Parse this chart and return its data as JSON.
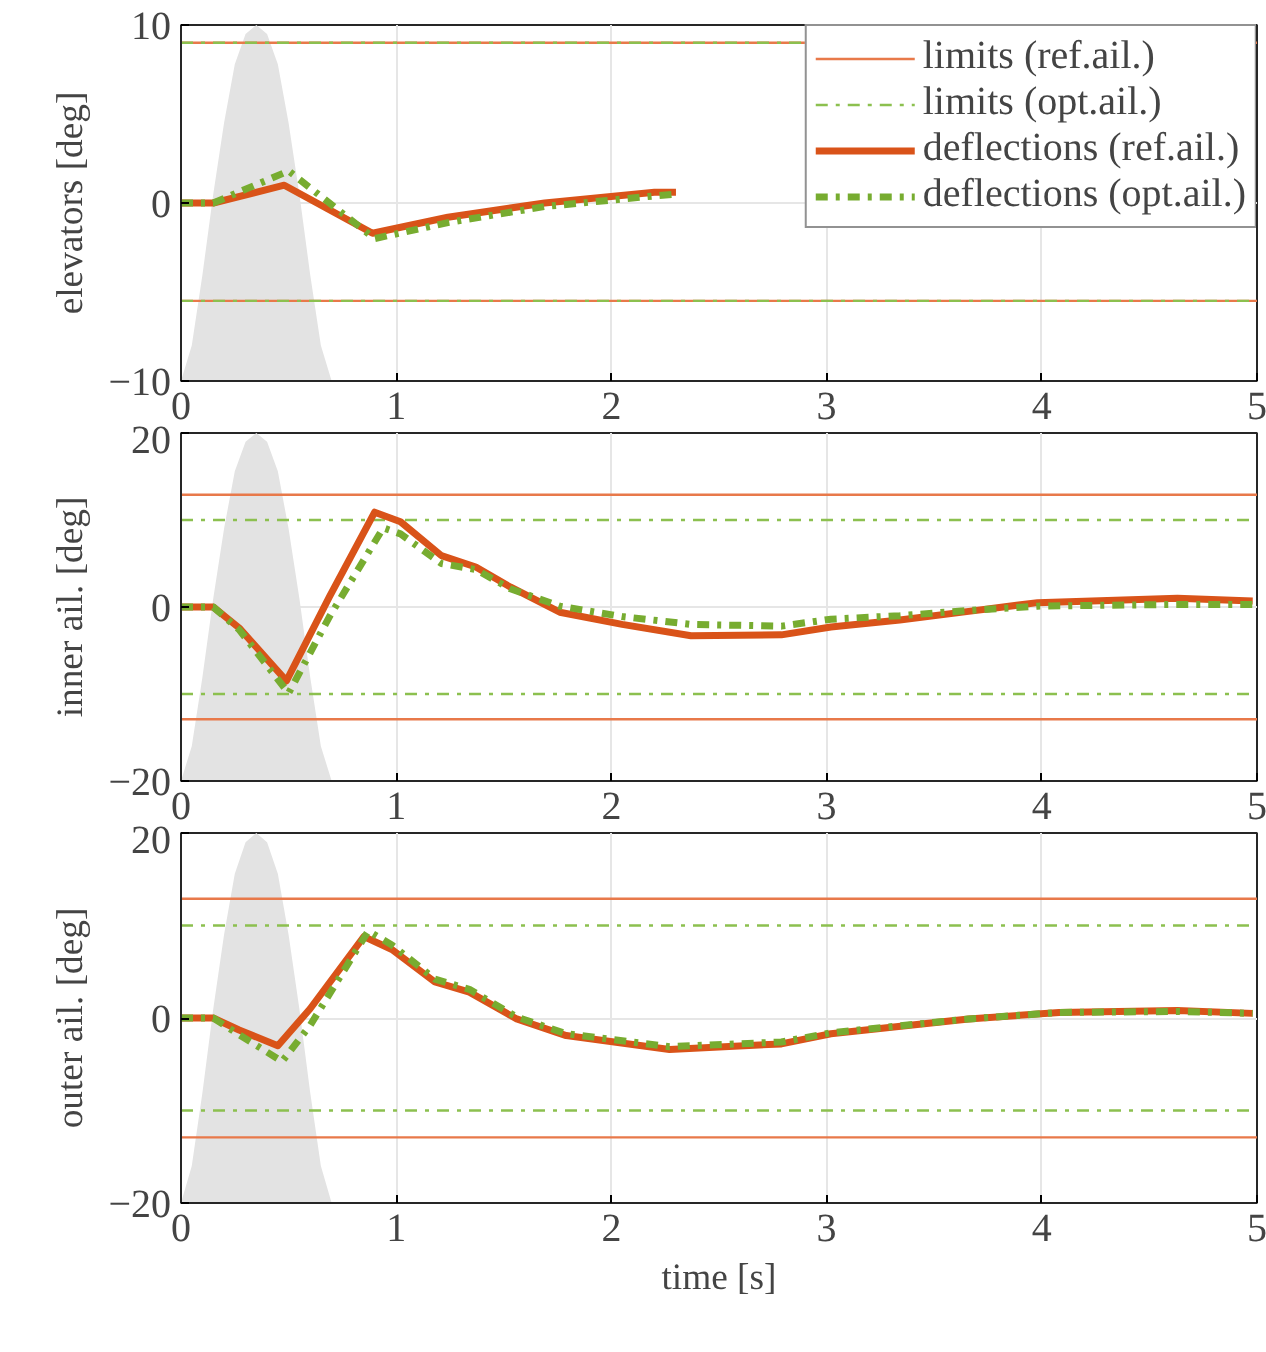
{
  "chart_data": [
    {
      "type": "line",
      "ylabel": "elevators [deg]",
      "xlim": [
        0,
        5
      ],
      "ylim": [
        -10,
        10
      ],
      "xticks": [
        0,
        1,
        2,
        3,
        4,
        5
      ],
      "yticks": [
        -10,
        0,
        10
      ],
      "grid": true,
      "legend": "top right",
      "ref_lines": [
        {
          "axis": "y",
          "value": 9,
          "label": "limits (ref.ail.)",
          "color": "#e8794a",
          "line_style": "solid"
        },
        {
          "axis": "y",
          "value": -5.5,
          "color": "#e8794a",
          "line_style": "solid"
        },
        {
          "axis": "y",
          "value": 9,
          "label": "limits (opt.ail.)",
          "color": "#8cc04f",
          "line_style": "dashdot"
        },
        {
          "axis": "y",
          "value": -5.5,
          "color": "#8cc04f",
          "line_style": "dashdot"
        }
      ],
      "series": [
        {
          "type": "area",
          "color": "#e3e3e3",
          "x": [
            0,
            0.05,
            0.1,
            0.15,
            0.2,
            0.25,
            0.3,
            0.35,
            0.4,
            0.45,
            0.5,
            0.55,
            0.6,
            0.65,
            0.7
          ],
          "values": [
            -10,
            -8,
            -4,
            0.5,
            4.5,
            7.8,
            9.5,
            10,
            9.5,
            7.8,
            4.5,
            0.5,
            -4,
            -8,
            -10
          ]
        },
        {
          "name": "deflections (ref.ail.)",
          "color": "#d95319",
          "line_style": "solid",
          "x": [
            0,
            0.15,
            0.48,
            0.89,
            1.24,
            1.69,
            2.2,
            2.3
          ],
          "values": [
            0,
            0,
            1,
            -1.7,
            -0.8,
            0,
            0.6,
            0.6
          ]
        },
        {
          "name": "deflections (opt.ail.)",
          "color": "#77ac30",
          "line_style": "dashdot",
          "x": [
            0,
            0.15,
            0.5,
            0.9,
            1.24,
            1.69,
            2.2,
            2.3
          ],
          "values": [
            0,
            0,
            1.8,
            -2,
            -1.1,
            -0.2,
            0.4,
            0.5
          ]
        }
      ]
    },
    {
      "type": "line",
      "ylabel": "inner ail. [deg]",
      "xlim": [
        0,
        5
      ],
      "ylim": [
        -20,
        20
      ],
      "xticks": [
        0,
        1,
        2,
        3,
        4,
        5
      ],
      "yticks": [
        -20,
        0,
        20
      ],
      "grid": true,
      "ref_lines": [
        {
          "axis": "y",
          "value": 12.9,
          "color": "#e8794a",
          "line_style": "solid"
        },
        {
          "axis": "y",
          "value": -12.9,
          "color": "#e8794a",
          "line_style": "solid"
        },
        {
          "axis": "y",
          "value": 10,
          "color": "#8cc04f",
          "line_style": "dashdot"
        },
        {
          "axis": "y",
          "value": -10,
          "color": "#8cc04f",
          "line_style": "dashdot"
        }
      ],
      "series": [
        {
          "type": "area",
          "color": "#e3e3e3",
          "x": [
            0,
            0.05,
            0.1,
            0.15,
            0.2,
            0.25,
            0.3,
            0.35,
            0.4,
            0.45,
            0.5,
            0.55,
            0.6,
            0.65,
            0.7
          ],
          "values": [
            -20,
            -16,
            -8,
            1,
            9,
            15.6,
            19,
            20,
            19,
            15.6,
            9,
            1,
            -8,
            -16,
            -20
          ]
        },
        {
          "color": "#d95319",
          "line_style": "solid",
          "x": [
            0,
            0.15,
            0.27,
            0.49,
            0.69,
            0.9,
            1.02,
            1.21,
            1.37,
            1.53,
            1.76,
            2.05,
            2.37,
            2.79,
            3.02,
            3.34,
            3.66,
            3.98,
            4.63,
            4.98
          ],
          "values": [
            0,
            0,
            -2.4,
            -8.5,
            1.2,
            10.9,
            9.8,
            5.9,
            4.6,
            2.3,
            -0.6,
            -2,
            -3.3,
            -3.2,
            -2.3,
            -1.5,
            -0.5,
            0.5,
            1.0,
            0.7
          ]
        },
        {
          "color": "#77ac30",
          "line_style": "dashdot",
          "x": [
            0,
            0.15,
            0.27,
            0.5,
            0.69,
            0.94,
            1.02,
            1.21,
            1.37,
            1.53,
            1.76,
            2.05,
            2.37,
            2.79,
            3.02,
            3.34,
            3.66,
            3.98,
            4.63,
            4.98
          ],
          "values": [
            0,
            0,
            -2.6,
            -9.9,
            -1.1,
            9.1,
            8.4,
            5.0,
            4.3,
            2.1,
            0.1,
            -1.1,
            -2.0,
            -2.2,
            -1.4,
            -1.0,
            -0.4,
            0.1,
            0.3,
            0.3
          ]
        }
      ]
    },
    {
      "type": "line",
      "ylabel": "outer ail. [deg]",
      "xlabel": "time [s]",
      "xlim": [
        0,
        5
      ],
      "ylim": [
        -20,
        20
      ],
      "xticks": [
        0,
        1,
        2,
        3,
        4,
        5
      ],
      "yticks": [
        -20,
        0,
        20
      ],
      "grid": true,
      "ref_lines": [
        {
          "axis": "y",
          "value": 12.9,
          "color": "#e8794a",
          "line_style": "solid"
        },
        {
          "axis": "y",
          "value": -12.9,
          "color": "#e8794a",
          "line_style": "solid"
        },
        {
          "axis": "y",
          "value": 10,
          "color": "#8cc04f",
          "line_style": "dashdot"
        },
        {
          "axis": "y",
          "value": -10,
          "color": "#8cc04f",
          "line_style": "dashdot"
        }
      ],
      "series": [
        {
          "type": "area",
          "color": "#e3e3e3",
          "x": [
            0,
            0.05,
            0.1,
            0.15,
            0.2,
            0.25,
            0.3,
            0.35,
            0.4,
            0.45,
            0.5,
            0.55,
            0.6,
            0.65,
            0.7
          ],
          "values": [
            -20,
            -16,
            -8,
            1,
            9,
            15.6,
            19,
            20,
            19,
            15.6,
            9,
            1,
            -8,
            -16,
            -20
          ]
        },
        {
          "color": "#d95319",
          "line_style": "solid",
          "x": [
            0,
            0.15,
            0.27,
            0.45,
            0.6,
            0.85,
            0.98,
            1.18,
            1.34,
            1.56,
            1.79,
            2.27,
            2.79,
            3.02,
            3.66,
            4.08,
            4.63,
            4.98
          ],
          "values": [
            0,
            0,
            -1.3,
            -3.0,
            1.0,
            8.8,
            7.4,
            3.9,
            2.8,
            -0.1,
            -1.9,
            -3.4,
            -2.8,
            -1.7,
            -0.1,
            0.6,
            0.8,
            0.5
          ]
        },
        {
          "color": "#77ac30",
          "line_style": "dashdot",
          "x": [
            0,
            0.15,
            0.27,
            0.47,
            0.6,
            0.87,
            0.98,
            1.18,
            1.34,
            1.56,
            1.79,
            2.27,
            2.79,
            3.02,
            3.66,
            4.08,
            4.63,
            4.98
          ],
          "values": [
            0,
            0,
            -1.8,
            -4.7,
            -0.8,
            9.4,
            7.9,
            4.2,
            3.1,
            0.1,
            -1.7,
            -3.1,
            -2.6,
            -1.6,
            -0.1,
            0.6,
            0.7,
            0.5
          ]
        }
      ]
    }
  ]
}
